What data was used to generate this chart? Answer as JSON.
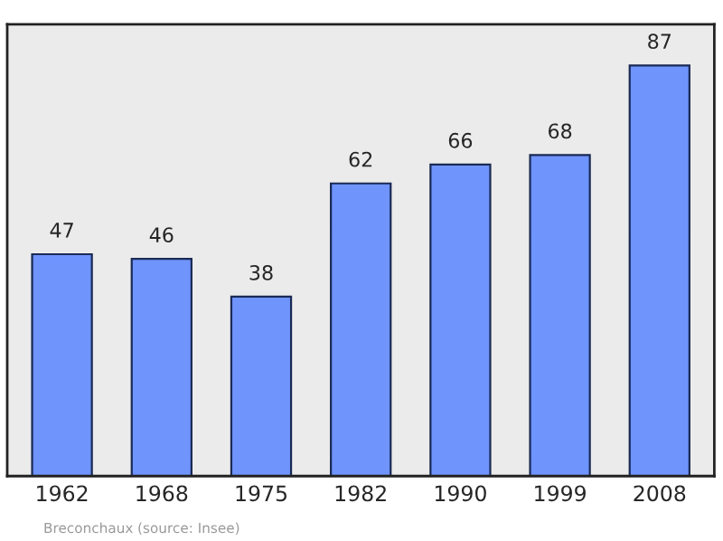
{
  "chart_data": {
    "type": "bar",
    "categories": [
      "1962",
      "1968",
      "1975",
      "1982",
      "1990",
      "1999",
      "2008"
    ],
    "values": [
      47,
      46,
      38,
      62,
      66,
      68,
      87
    ],
    "color": "#6f94fc",
    "data_labels": true,
    "tick_labels": "x",
    "annotations": [
      "Breconchaux",
      "(source: Insee)"
    ]
  }
}
